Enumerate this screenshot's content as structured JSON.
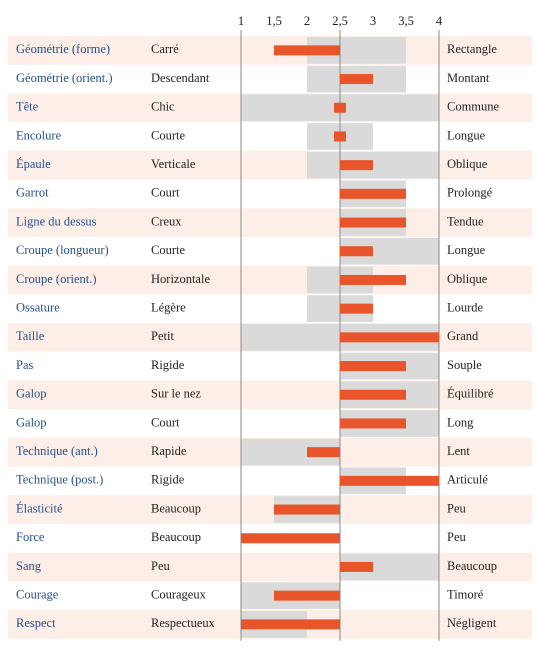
{
  "chart_data": {
    "type": "bar",
    "xlim": [
      1,
      4
    ],
    "xticks": [
      1,
      {
        "value": 1.5,
        "label": "1,5"
      },
      2,
      {
        "value": 2.5,
        "label": "2,5"
      },
      3,
      {
        "value": 3.5,
        "label": "3,5"
      },
      4
    ],
    "base": 2.5,
    "color": "#e8552a",
    "range_color": "#dadada",
    "categories": [
      "Géométrie (forme)",
      "Géométrie (orient.)",
      "Tête",
      "Encolure",
      "Épaule",
      "Garrot",
      "Ligne du dessus",
      "Croupe (longueur)",
      "Croupe (orient.)",
      "Ossature",
      "Taille",
      "Pas",
      "Galop",
      "Galop",
      "Technique (ant.)",
      "Technique (post.)",
      "Élasticité",
      "Force",
      "Sang",
      "Courage",
      "Respect"
    ],
    "left_labels": [
      "Carré",
      "Descendant",
      "Chic",
      "Courte",
      "Verticale",
      "Court",
      "Creux",
      "Courte",
      "Horizontale",
      "Légère",
      "Petit",
      "Rigide",
      "Sur le nez",
      "Court",
      "Rapide",
      "Rigide",
      "Beaucoup",
      "Beaucoup",
      "Peu",
      "Courageux",
      "Respectueux"
    ],
    "right_labels": [
      "Rectangle",
      "Montant",
      "Commune",
      "Longue",
      "Oblique",
      "Prolongé",
      "Tendue",
      "Longue",
      "Oblique",
      "Lourde",
      "Grand",
      "Souple",
      "Équilibré",
      "Long",
      "Lent",
      "Articulé",
      "Peu",
      "Peu",
      "Beaucoup",
      "Timoré",
      "Négligent"
    ],
    "ranges": [
      [
        2,
        3.5
      ],
      [
        2,
        3.5
      ],
      [
        1,
        4
      ],
      [
        2,
        3
      ],
      [
        2,
        4
      ],
      [
        2.5,
        3.5
      ],
      [
        2.5,
        3.5
      ],
      [
        2.5,
        4
      ],
      [
        2,
        3
      ],
      [
        2,
        3
      ],
      [
        1,
        4
      ],
      [
        2.5,
        4
      ],
      [
        2.5,
        4
      ],
      [
        2.5,
        4
      ],
      [
        1,
        2.5
      ],
      [
        2.5,
        3.5
      ],
      [
        1.5,
        2.5
      ],
      null,
      [
        2.5,
        4
      ],
      [
        1,
        2.5
      ],
      [
        1,
        2
      ]
    ],
    "values": [
      1.5,
      3,
      2.5,
      2.5,
      3,
      3.5,
      3.5,
      3,
      3.5,
      3,
      4,
      3.5,
      3.5,
      3.5,
      2,
      4,
      1.5,
      1,
      3,
      1.5,
      1
    ]
  }
}
